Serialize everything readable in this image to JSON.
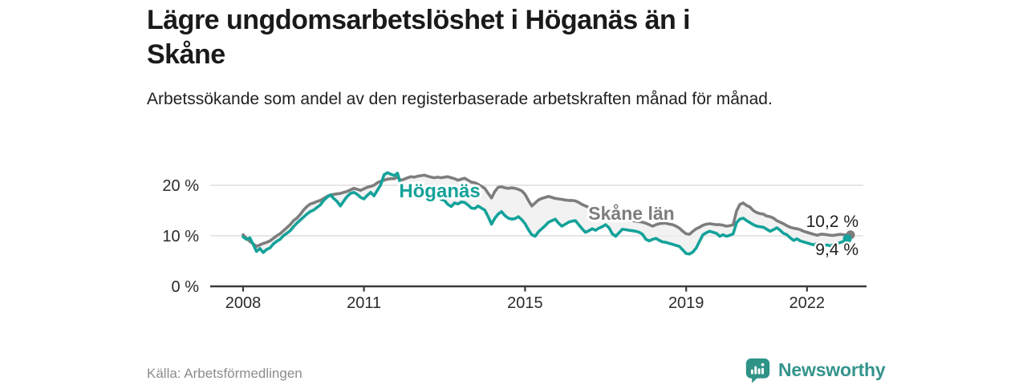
{
  "header": {
    "title": "Lägre ungdomsarbetslöshet i Höganäs än i Skåne",
    "subtitle": "Arbetssökande som andel av den registerbaserade arbetskraften månad för månad."
  },
  "footer": {
    "source": "Källa: Arbetsförmedlingen",
    "brand": "Newsworthy"
  },
  "colors": {
    "hoganas_teal": "#14a29a",
    "skane_gray": "#7d7d7d",
    "band_fill": "#ededed",
    "brand_teal": "#35948c",
    "axis": "#3b3b3b",
    "gridline": "#d8d8d8",
    "tick_text": "#2b2b2b",
    "value_label_text": "#222222"
  },
  "chart_data": {
    "type": "line",
    "title": "Lägre ungdomsarbetslöshet i Höganäs än i Skåne",
    "subtitle": "Arbetssökande som andel av den registerbaserade arbetskraften månad för månad.",
    "x_unit": "year-month",
    "x_start": "2008-01",
    "x_end": "2023-01",
    "x_step_months": 1,
    "x_ticks": [
      2008,
      2011,
      2015,
      2019,
      2022
    ],
    "y_ticks": [
      0,
      10,
      20
    ],
    "y_tick_suffix": " %",
    "ylim": [
      0,
      23.5
    ],
    "xlim": [
      2007.2,
      2023.7
    ],
    "grid": "horizontal",
    "legend_position": "inline-labels",
    "band_between_series": true,
    "series": [
      {
        "name": "Skåne län",
        "color": "#7d7d7d",
        "end_value": 10.2,
        "end_label": "10,2 %",
        "values": [
          10.2,
          9.5,
          8.9,
          8.4,
          7.9,
          8.2,
          8.5,
          8.7,
          9.0,
          9.5,
          10.0,
          10.4,
          11.0,
          11.6,
          12.2,
          13.0,
          13.5,
          14.2,
          15.1,
          15.8,
          16.3,
          16.5,
          16.8,
          17.0,
          17.4,
          17.8,
          18.1,
          18.2,
          18.3,
          18.4,
          18.6,
          18.8,
          19.1,
          19.4,
          19.2,
          19.0,
          19.3,
          19.6,
          19.8,
          20.0,
          20.5,
          20.8,
          21.0,
          21.2,
          21.3,
          21.3,
          21.6,
          21.0,
          21.2,
          21.5,
          21.7,
          21.6,
          21.8,
          21.9,
          22.0,
          21.8,
          21.6,
          21.5,
          21.6,
          21.5,
          21.6,
          21.7,
          21.5,
          21.3,
          21.0,
          21.2,
          21.4,
          21.0,
          20.6,
          20.5,
          20.2,
          19.8,
          19.4,
          18.4,
          17.5,
          18.8,
          19.6,
          19.7,
          19.5,
          19.4,
          19.5,
          19.4,
          19.2,
          18.9,
          18.2,
          17.0,
          15.9,
          16.5,
          17.1,
          17.4,
          17.6,
          17.8,
          17.6,
          17.4,
          17.3,
          17.2,
          17.1,
          17.0,
          17.0,
          16.9,
          16.6,
          16.2,
          15.9,
          15.6,
          15.3,
          15.1,
          14.9,
          14.6,
          14.4,
          14.3,
          14.0,
          13.7,
          13.5,
          13.4,
          13.3,
          13.2,
          13.0,
          12.9,
          12.8,
          12.7,
          12.5,
          12.2,
          11.9,
          12.2,
          12.4,
          12.5,
          12.5,
          12.3,
          12.2,
          11.9,
          11.5,
          10.9,
          10.4,
          10.3,
          10.9,
          11.4,
          11.7,
          12.1,
          12.3,
          12.4,
          12.3,
          12.2,
          12.2,
          12.1,
          11.9,
          12.0,
          12.2,
          14.9,
          16.2,
          16.5,
          16.0,
          15.7,
          15.0,
          14.6,
          14.4,
          14.3,
          13.9,
          13.8,
          13.5,
          13.0,
          12.7,
          12.4,
          12.0,
          11.7,
          11.5,
          11.4,
          11.2,
          10.9,
          10.7,
          10.5,
          10.3,
          10.1,
          10.3,
          10.3,
          10.2,
          10.1,
          10.1,
          10.2,
          10.3,
          10.2,
          10.2
        ]
      },
      {
        "name": "Höganäs",
        "color": "#14a29a",
        "end_value": 9.4,
        "end_label": "9,4 %",
        "values": [
          9.8,
          9.3,
          9.6,
          8.3,
          6.9,
          7.5,
          6.7,
          7.3,
          7.6,
          8.4,
          8.9,
          9.3,
          10.0,
          10.5,
          11.0,
          11.8,
          12.5,
          13.1,
          13.7,
          14.3,
          14.8,
          15.1,
          15.6,
          16.1,
          17.0,
          17.6,
          18.1,
          17.4,
          16.8,
          15.9,
          16.9,
          17.8,
          18.4,
          18.6,
          18.2,
          17.6,
          17.3,
          18.0,
          18.6,
          17.9,
          19.0,
          20.1,
          22.1,
          22.5,
          22.2,
          21.9,
          22.4,
          20.0,
          18.5,
          19.3,
          18.4,
          19.0,
          19.5,
          19.2,
          18.8,
          19.0,
          18.5,
          18.0,
          17.7,
          17.2,
          17.0,
          16.2,
          15.8,
          16.5,
          16.3,
          16.7,
          16.6,
          16.1,
          15.5,
          15.4,
          15.9,
          15.5,
          15.1,
          13.8,
          12.3,
          13.5,
          14.3,
          14.8,
          14.0,
          13.5,
          13.3,
          13.4,
          13.8,
          13.2,
          12.4,
          11.2,
          10.2,
          9.9,
          10.8,
          11.4,
          12.0,
          12.7,
          13.0,
          13.3,
          12.5,
          11.9,
          12.3,
          12.7,
          12.9,
          13.0,
          12.2,
          11.4,
          10.7,
          11.0,
          11.4,
          11.1,
          11.5,
          11.8,
          12.2,
          11.6,
          10.4,
          9.9,
          10.6,
          11.3,
          11.2,
          11.1,
          11.0,
          10.9,
          10.7,
          10.3,
          9.3,
          9.0,
          9.3,
          9.5,
          9.1,
          8.8,
          8.7,
          8.5,
          8.3,
          8.1,
          7.9,
          7.2,
          6.5,
          6.4,
          6.8,
          7.6,
          8.9,
          10.2,
          10.6,
          10.9,
          10.7,
          10.5,
          9.9,
          10.2,
          9.9,
          10.1,
          10.4,
          12.6,
          13.3,
          13.5,
          13.0,
          12.6,
          12.2,
          11.9,
          11.8,
          11.7,
          11.3,
          10.9,
          11.2,
          11.6,
          11.1,
          10.5,
          10.2,
          9.6,
          9.1,
          9.4,
          9.0,
          8.8,
          8.6,
          8.4,
          8.2,
          8.5,
          8.3,
          8.0,
          8.2,
          8.0,
          8.3,
          8.5,
          8.7,
          8.9,
          9.4
        ]
      }
    ]
  }
}
